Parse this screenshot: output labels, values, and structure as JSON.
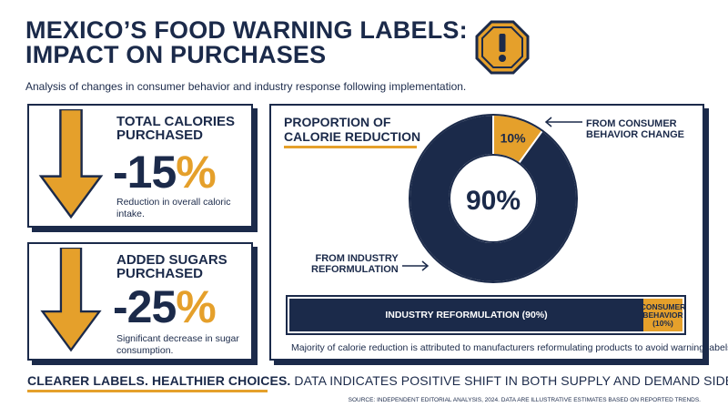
{
  "header": {
    "title_line1": "MEXICO’S FOOD WARNING LABELS:",
    "title_line2": "IMPACT ON PURCHASES",
    "subtitle": "Analysis of changes in consumer behavior and industry response following implementation.",
    "icon": "warning-octagon-icon"
  },
  "stats": {
    "calories": {
      "label_line1": "TOTAL CALORIES",
      "label_line2": "PURCHASED",
      "value": "-15",
      "unit": "%",
      "description": "Reduction in overall caloric intake.",
      "icon": "down-arrow-icon"
    },
    "sugars": {
      "label_line1": "ADDED SUGARS",
      "label_line2": "PURCHASED",
      "value": "-25",
      "unit": "%",
      "description": "Significant decrease in sugar consumption.",
      "icon": "down-arrow-icon"
    }
  },
  "proportion": {
    "title_line1": "PROPORTION OF",
    "title_line2": "CALORIE REDUCTION",
    "center_label": "90%",
    "slice_label": "10%",
    "annotation_consumer_line1": "FROM CONSUMER",
    "annotation_consumer_line2": "BEHAVIOR CHANGE",
    "annotation_industry_line1": "FROM INDUSTRY",
    "annotation_industry_line2": "REFORMULATION",
    "bar_industry_label": "INDUSTRY REFORMULATION (90%)",
    "bar_consumer_line1": "CONSUMER",
    "bar_consumer_line2": "BEHAVIOR",
    "bar_consumer_line3": "(10%)",
    "note": "Majority of calorie reduction is attributed to manufacturers reformulating products to avoid warning labels."
  },
  "chart_data": {
    "type": "pie",
    "title": "PROPORTION OF CALORIE REDUCTION",
    "categories": [
      "FROM INDUSTRY REFORMULATION",
      "FROM CONSUMER BEHAVIOR CHANGE"
    ],
    "values": [
      90,
      10
    ],
    "colors": [
      "#1b2a4a",
      "#e5a02b"
    ]
  },
  "footer": {
    "emphasis": "CLEARER LABELS. HEALTHIER CHOICES.",
    "rest": " DATA INDICATES POSITIVE SHIFT IN BOTH SUPPLY AND DEMAND SIDES.",
    "source": "SOURCE: INDEPENDENT EDITORIAL ANALYSIS, 2024. DATA ARE ILLUSTRATIVE ESTIMATES BASED ON REPORTED TRENDS."
  },
  "colors": {
    "navy": "#1b2a4a",
    "gold": "#e5a02b"
  }
}
